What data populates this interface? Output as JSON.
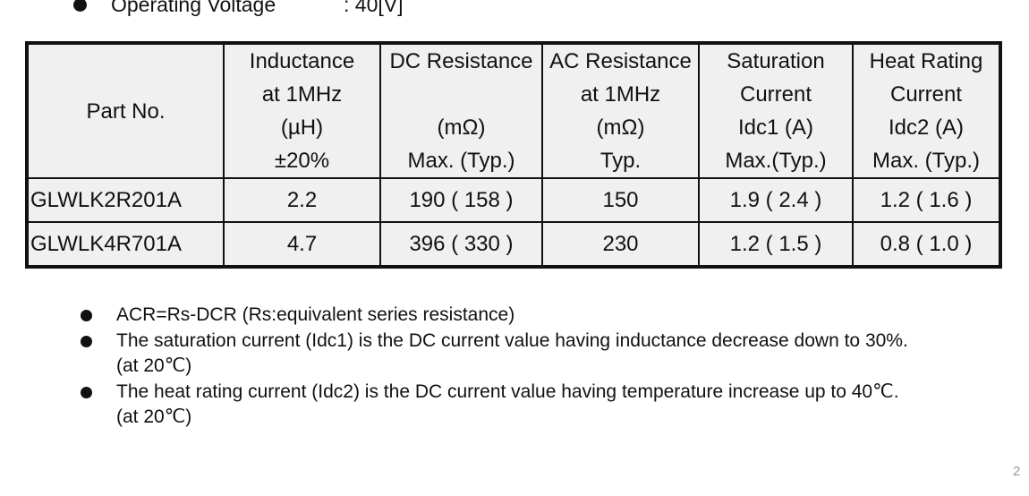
{
  "spec": {
    "label": "Operating Voltage",
    "value": ":  40[V]"
  },
  "table": {
    "headers": [
      [
        "Part No."
      ],
      [
        "Inductance",
        "at  1MHz",
        "(µH)",
        "±20%"
      ],
      [
        "DC Resistance",
        "",
        "(mΩ)",
        "Max. (Typ.)"
      ],
      [
        "AC Resistance",
        "at 1MHz",
        "(mΩ)",
        "Typ."
      ],
      [
        "Saturation",
        "Current",
        "Idc1 (A)",
        "Max.(Typ.)"
      ],
      [
        "Heat Rating",
        "Current",
        "Idc2 (A)",
        "Max. (Typ.)"
      ]
    ],
    "rows": [
      [
        "GLWLK2R201A",
        "2.2",
        "190 ( 158 )",
        "150",
        "1.9 ( 2.4 )",
        "1.2 ( 1.6 )"
      ],
      [
        "GLWLK4R701A",
        "4.7",
        "396 ( 330 )",
        "230",
        "1.2 ( 1.5 )",
        "0.8 ( 1.0 )"
      ]
    ]
  },
  "notes": [
    [
      "ACR=Rs-DCR (Rs:equivalent series resistance)"
    ],
    [
      "The saturation current (Idc1) is the DC current value having inductance decrease down to 30%.",
      "(at 20℃)"
    ],
    [
      "The heat rating current (Idc2) is the DC current value having temperature increase up to 40℃.",
      "(at 20℃)"
    ]
  ],
  "page_number": "2"
}
